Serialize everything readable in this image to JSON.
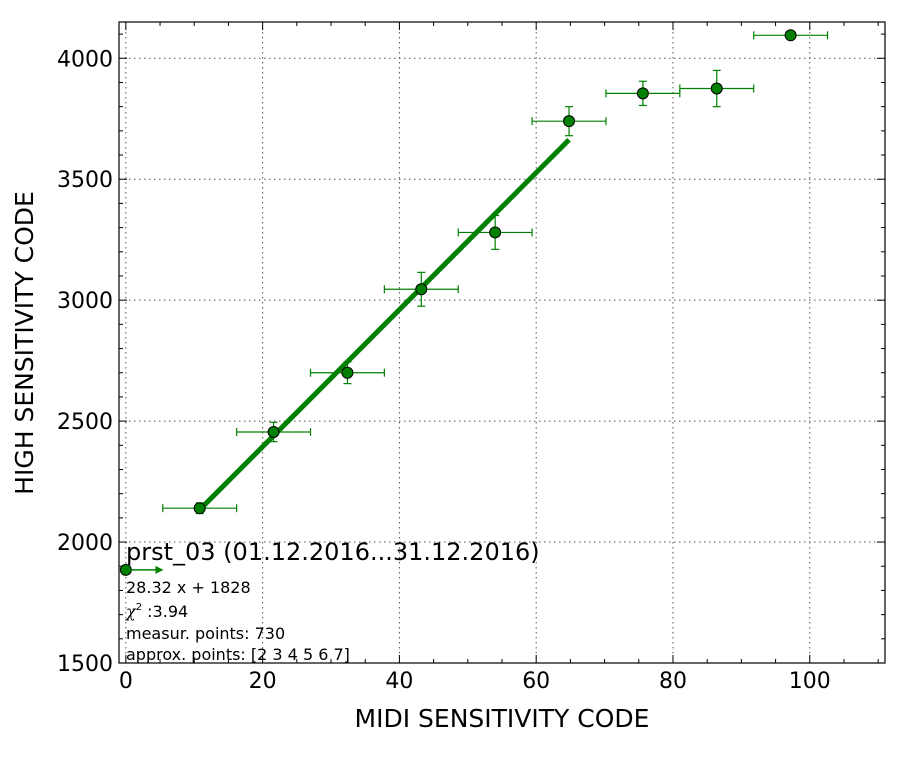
{
  "chart_data": {
    "type": "scatter",
    "title": "",
    "xlabel": "MIDI SENSITIVITY CODE",
    "ylabel": "HIGH SENSITIVITY CODE",
    "xlim": [
      -1,
      111
    ],
    "ylim": [
      1500,
      4150
    ],
    "x_ticks": [
      0,
      20,
      40,
      60,
      80,
      100
    ],
    "y_ticks": [
      1500,
      2000,
      2500,
      3000,
      3500,
      4000
    ],
    "grid": true,
    "grid_style": "dotted",
    "colors": {
      "series": "#008000",
      "marker_edge": "#000000",
      "fit": "#008000",
      "frame": "#000000",
      "grid": "#555555"
    },
    "series": [
      {
        "points": [
          {
            "x": 0.0,
            "y": 1885,
            "xerr": 0.0,
            "yerr": 0
          },
          {
            "x": 10.8,
            "y": 2140,
            "xerr": 5.4,
            "yerr": 22
          },
          {
            "x": 21.6,
            "y": 2455,
            "xerr": 5.4,
            "yerr": 40
          },
          {
            "x": 32.4,
            "y": 2700,
            "xerr": 5.4,
            "yerr": 45
          },
          {
            "x": 43.2,
            "y": 3045,
            "xerr": 5.4,
            "yerr": 70
          },
          {
            "x": 54.0,
            "y": 3280,
            "xerr": 5.4,
            "yerr": 70
          },
          {
            "x": 64.8,
            "y": 3740,
            "xerr": 5.4,
            "yerr": 60
          },
          {
            "x": 75.6,
            "y": 3855,
            "xerr": 5.4,
            "yerr": 50
          },
          {
            "x": 86.4,
            "y": 3875,
            "xerr": 5.4,
            "yerr": 75
          },
          {
            "x": 97.2,
            "y": 4095,
            "xerr": 5.4,
            "yerr": 0
          }
        ]
      }
    ],
    "fit": {
      "slope": 28.32,
      "intercept": 1828,
      "x_from": 10.8,
      "x_to": 64.8
    },
    "legend_arrow": {
      "x_from": 0,
      "x_to": 5.5,
      "y": 1885
    },
    "annotations": {
      "heading": "prst_03 (01.12.2016...31.12.2016)",
      "equation": "28.32 x + 1828",
      "chi_prefix": "χ",
      "chi_sup": "2",
      "chi_value": " :3.94",
      "measured": "measur. points: 730",
      "approx": "approx. points: [2 3 4 5 6 7]"
    }
  }
}
